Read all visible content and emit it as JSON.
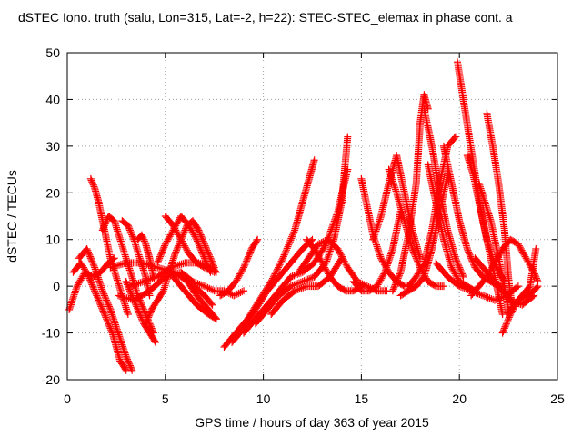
{
  "chart_data": {
    "type": "scatter",
    "title": "dSTEC Iono. truth (salu, Lon=315, Lat=-2, h=22): STEC-STEC_elemax in phase cont. a",
    "xlabel": "GPS time / hours of day 363 of year 2015",
    "ylabel": "dSTEC  / TECUs",
    "xlim": [
      0,
      25
    ],
    "ylim": [
      -20,
      50
    ],
    "xticks": [
      0,
      5,
      10,
      15,
      20,
      25
    ],
    "yticks": [
      -20,
      -10,
      0,
      10,
      20,
      30,
      40,
      50
    ],
    "xtick_labels": [
      "0",
      "5",
      "10",
      "15",
      "20",
      "25"
    ],
    "ytick_labels": [
      "-20",
      "-10",
      "0",
      "10",
      "20",
      "30",
      "40",
      "50"
    ],
    "grid": true,
    "marker": "+",
    "color": "#ff0000",
    "series": [
      {
        "x": [
          0.1,
          0.5,
          0.9,
          1.3,
          1.7,
          2.1,
          2.4
        ],
        "y": [
          -5,
          0,
          3,
          2,
          3,
          5,
          6
        ]
      },
      {
        "x": [
          0.3,
          0.7,
          1.1,
          1.5,
          1.9,
          2.3,
          2.7,
          3.0
        ],
        "y": [
          3,
          5,
          2,
          -2,
          -6,
          -10,
          -16,
          -18
        ]
      },
      {
        "x": [
          0.6,
          1.0,
          1.4,
          1.8,
          2.2,
          2.6,
          3.0,
          3.3
        ],
        "y": [
          6,
          8,
          4,
          -1,
          -5,
          -10,
          -15,
          -18
        ]
      },
      {
        "x": [
          1.2,
          1.4,
          1.6,
          1.8,
          2.0,
          2.2,
          2.5,
          2.8,
          3.1
        ],
        "y": [
          23,
          21,
          18,
          14,
          10,
          6,
          2,
          -2,
          -6
        ]
      },
      {
        "x": [
          1.8,
          2.1,
          2.4,
          2.7,
          3.0,
          3.3,
          3.6,
          3.9,
          4.2,
          4.4
        ],
        "y": [
          12,
          15,
          14,
          10,
          6,
          2,
          -2,
          -5,
          -8,
          -10
        ]
      },
      {
        "x": [
          2.8,
          3.1,
          3.4,
          3.7,
          4.0,
          4.2
        ],
        "y": [
          14,
          13,
          10,
          6,
          2,
          -2
        ]
      },
      {
        "x": [
          3.0,
          3.3,
          3.6,
          3.9,
          4.2,
          4.5
        ],
        "y": [
          1,
          -2,
          -5,
          -8,
          -10,
          -12
        ]
      },
      {
        "x": [
          3.6,
          3.8,
          4.0,
          4.2,
          4.4
        ],
        "y": [
          10,
          11,
          9,
          6,
          2
        ]
      },
      {
        "x": [
          4.0,
          4.3,
          4.6,
          4.9,
          5.2,
          5.5,
          5.8,
          6.1,
          6.4,
          6.7,
          7.0,
          7.3,
          7.5
        ],
        "y": [
          -8,
          -5,
          -3,
          -1,
          3,
          7,
          10,
          13,
          14,
          12,
          9,
          6,
          4
        ]
      },
      {
        "x": [
          2.2,
          3.0,
          3.8,
          4.6,
          5.4,
          6.2,
          7.0,
          7.4
        ],
        "y": [
          4,
          5,
          5,
          4,
          3,
          1,
          -2,
          -4
        ]
      },
      {
        "x": [
          3.2,
          3.9,
          4.6,
          5.3,
          6.0,
          6.7,
          7.4,
          7.6
        ],
        "y": [
          0,
          1,
          2,
          4,
          5,
          5,
          4,
          3
        ]
      },
      {
        "x": [
          2.6,
          3.4,
          4.2,
          5.0,
          5.8,
          6.6,
          7.4,
          7.6
        ],
        "y": [
          -2,
          -3,
          -1,
          2,
          3,
          -2,
          -6,
          -7
        ]
      },
      {
        "x": [
          4.6,
          5.0,
          5.4,
          5.8,
          6.2,
          6.6,
          7.0,
          7.3
        ],
        "y": [
          5,
          9,
          12,
          15,
          13,
          10,
          6,
          3
        ]
      },
      {
        "x": [
          5.0,
          5.4,
          5.8,
          6.2,
          6.6,
          7.0,
          7.5
        ],
        "y": [
          15,
          13,
          10,
          7,
          5,
          4,
          3
        ]
      },
      {
        "x": [
          5.4,
          6.0,
          6.6,
          7.2,
          7.6
        ],
        "y": [
          2,
          -1,
          -4,
          -6,
          -7
        ]
      },
      {
        "x": [
          5.8,
          6.4,
          7.0,
          7.5,
          8.0,
          8.5,
          9.0
        ],
        "y": [
          3,
          1,
          0,
          -1,
          -1,
          -2,
          -1
        ]
      },
      {
        "x": [
          7.8,
          8.2,
          8.6,
          9.0,
          9.4,
          9.7
        ],
        "y": [
          -2,
          -1,
          1,
          4,
          8,
          10
        ]
      },
      {
        "x": [
          8.0,
          8.6,
          9.2,
          9.8,
          10.4,
          11.0,
          11.6,
          12.0,
          12.4,
          12.6
        ],
        "y": [
          -13,
          -10,
          -7,
          -3,
          1,
          6,
          12,
          18,
          24,
          27
        ]
      },
      {
        "x": [
          8.4,
          9.0,
          9.6,
          10.2,
          10.8,
          11.4,
          12.0,
          12.5
        ],
        "y": [
          -12,
          -9,
          -5,
          -1,
          2,
          5,
          8,
          10
        ]
      },
      {
        "x": [
          9.0,
          9.6,
          10.2,
          10.8,
          11.4,
          12.0,
          12.6,
          13.2,
          13.8,
          14.3
        ],
        "y": [
          -10,
          -7,
          -4,
          -1,
          2,
          3,
          5,
          9,
          16,
          25
        ]
      },
      {
        "x": [
          9.6,
          10.2,
          10.8,
          11.4,
          12.0,
          12.6,
          13.2,
          13.6,
          14.0,
          14.3
        ],
        "y": [
          -8,
          -5,
          -2,
          0,
          1,
          2,
          5,
          10,
          18,
          32
        ]
      },
      {
        "x": [
          10.4,
          11.0,
          11.6,
          12.2,
          12.8,
          13.4,
          14.0
        ],
        "y": [
          -6,
          -3,
          -1,
          0,
          0,
          2,
          6
        ]
      },
      {
        "x": [
          11.8,
          12.3,
          12.8,
          13.3,
          13.8,
          14.3,
          14.8,
          15.3,
          15.8,
          16.3
        ],
        "y": [
          3,
          6,
          9,
          10,
          8,
          4,
          1,
          0,
          -1,
          -1
        ]
      },
      {
        "x": [
          12.2,
          12.6,
          13.0,
          13.4,
          13.8,
          14.2,
          14.6,
          15.0
        ],
        "y": [
          10,
          8,
          5,
          2,
          0,
          -1,
          -1,
          0
        ]
      },
      {
        "x": [
          14.6,
          15.0,
          15.4,
          15.8,
          16.2,
          16.6,
          17.0
        ],
        "y": [
          1,
          -1,
          -1,
          0,
          3,
          8,
          16
        ]
      },
      {
        "x": [
          15.0,
          15.3,
          15.6,
          16.0,
          16.4,
          16.8,
          17.2,
          17.6
        ],
        "y": [
          23,
          17,
          11,
          6,
          3,
          1,
          0,
          0
        ]
      },
      {
        "x": [
          15.6,
          16.0,
          16.4,
          16.8,
          17.2,
          17.6,
          18.0
        ],
        "y": [
          10,
          15,
          22,
          28,
          20,
          12,
          6
        ]
      },
      {
        "x": [
          16.4,
          16.8,
          17.2,
          17.6,
          18.0,
          18.4,
          18.8,
          19.2
        ],
        "y": [
          25,
          20,
          14,
          8,
          4,
          1,
          0,
          0
        ]
      },
      {
        "x": [
          16.6,
          17.0,
          17.4,
          17.8,
          18.0,
          18.2,
          18.4
        ],
        "y": [
          -1,
          3,
          11,
          22,
          35,
          41,
          38
        ]
      },
      {
        "x": [
          17.0,
          17.4,
          17.8,
          18.2,
          18.6,
          19.0,
          19.4
        ],
        "y": [
          -2,
          -1,
          0,
          2,
          8,
          16,
          24
        ]
      },
      {
        "x": [
          17.4,
          17.8,
          18.2,
          18.6,
          19.0,
          19.4,
          19.8
        ],
        "y": [
          0,
          2,
          5,
          12,
          22,
          30,
          32
        ]
      },
      {
        "x": [
          18.2,
          18.6,
          19.0,
          19.4,
          19.8,
          20.2
        ],
        "y": [
          38,
          30,
          20,
          12,
          6,
          2
        ]
      },
      {
        "x": [
          18.4,
          18.8,
          19.2,
          19.6,
          20.0,
          20.4,
          20.8
        ],
        "y": [
          26,
          18,
          10,
          4,
          1,
          0,
          -1
        ]
      },
      {
        "x": [
          19.2,
          19.6,
          20.0,
          20.4,
          20.8,
          21.2,
          21.6,
          22.0,
          22.2
        ],
        "y": [
          30,
          22,
          14,
          8,
          4,
          2,
          1,
          0,
          0
        ]
      },
      {
        "x": [
          19.9,
          20.2,
          20.5,
          20.8,
          21.1,
          21.4,
          21.7,
          22.0,
          22.3
        ],
        "y": [
          48,
          40,
          32,
          24,
          16,
          10,
          6,
          3,
          1
        ]
      },
      {
        "x": [
          20.4,
          20.7,
          21.0,
          21.3,
          21.6,
          21.9,
          22.2
        ],
        "y": [
          28,
          24,
          18,
          12,
          6,
          0,
          -6
        ]
      },
      {
        "x": [
          21.0,
          21.3,
          21.6,
          21.9,
          22.2,
          22.5
        ],
        "y": [
          22,
          18,
          14,
          8,
          2,
          -5
        ]
      },
      {
        "x": [
          21.4,
          21.7,
          22.0,
          22.3,
          22.5,
          22.7
        ],
        "y": [
          37,
          30,
          22,
          12,
          2,
          -5
        ]
      },
      {
        "x": [
          20.6,
          21.0,
          21.4,
          21.8,
          22.2,
          22.6,
          23.0,
          23.4,
          23.8,
          24.0
        ],
        "y": [
          -2,
          0,
          2,
          5,
          8,
          10,
          9,
          6,
          3,
          1
        ]
      },
      {
        "x": [
          22.2,
          22.6,
          23.0,
          23.4,
          23.8,
          24.0
        ],
        "y": [
          -10,
          -6,
          -3,
          -2,
          -1,
          0
        ]
      },
      {
        "x": [
          22.4,
          22.8,
          23.2,
          23.6,
          23.9
        ],
        "y": [
          -6,
          -4,
          -2,
          0,
          8
        ]
      },
      {
        "x": [
          18.8,
          19.4,
          20.0,
          20.6,
          21.2,
          21.8,
          22.4,
          23.0
        ],
        "y": [
          5,
          2,
          0,
          -1,
          -2,
          -3,
          -2,
          0
        ]
      },
      {
        "x": [
          20.8,
          21.4,
          22.0,
          22.6,
          23.2,
          23.8
        ],
        "y": [
          6,
          3,
          0,
          -3,
          -4,
          -2
        ]
      }
    ]
  }
}
